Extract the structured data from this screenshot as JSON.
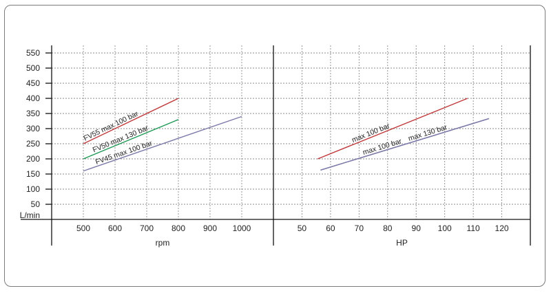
{
  "colors": {
    "frame": "#7a7a7a",
    "axis": "#111111",
    "grid": "#8a8a8a",
    "red": "#c0393b",
    "green": "#1e9a55",
    "purple": "#7a78a8"
  },
  "chart_data": [
    {
      "type": "line",
      "panel": "left",
      "xlabel": "rpm",
      "ylabel": "L/min",
      "xlim": [
        400,
        1100
      ],
      "ylim": [
        0,
        575
      ],
      "x_ticks": [
        500,
        600,
        700,
        800,
        900,
        1000
      ],
      "y_ticks": [
        50,
        100,
        150,
        200,
        250,
        300,
        350,
        400,
        450,
        500,
        550
      ],
      "grid": true,
      "series": [
        {
          "name": "FV55 max 100 bar",
          "color": "red",
          "points": [
            [
              500,
              250
            ],
            [
              800,
              400
            ]
          ]
        },
        {
          "name": "FV50 max 130 bar",
          "color": "green",
          "points": [
            [
              500,
              200
            ],
            [
              800,
              330
            ]
          ]
        },
        {
          "name": "FV45 max 100 bar",
          "color": "purple",
          "points": [
            [
              500,
              160
            ],
            [
              1000,
              340
            ]
          ]
        }
      ]
    },
    {
      "type": "line",
      "panel": "right",
      "xlabel": "HP",
      "xlim": [
        40,
        130
      ],
      "ylim": [
        0,
        575
      ],
      "x_ticks": [
        50,
        60,
        70,
        80,
        90,
        100,
        110,
        120
      ],
      "grid": true,
      "series": [
        {
          "name": "max 100 bar",
          "color": "red",
          "points": [
            [
              55.5,
              200
            ],
            [
              108,
              400
            ]
          ]
        },
        {
          "name": "max 100 bar",
          "color": "purple",
          "points": [
            [
              56.5,
              163
            ],
            [
              115.5,
              333
            ]
          ]
        },
        {
          "name": "max 130 bar",
          "color": "purple",
          "points": [
            [
              56.5,
              163
            ],
            [
              115.5,
              333
            ]
          ]
        }
      ]
    }
  ]
}
